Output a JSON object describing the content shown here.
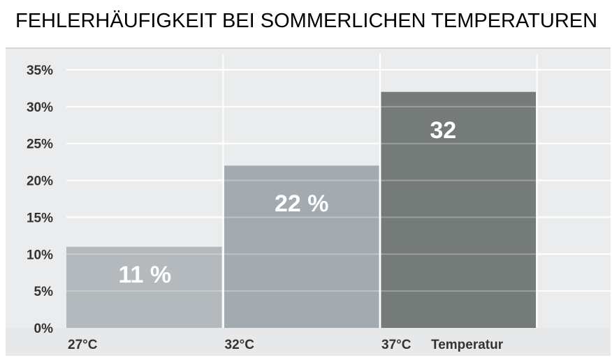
{
  "chart_data": {
    "type": "bar",
    "title": "FEHLERHÄUFIGKEIT BEI SOMMERLICHEN TEMPERATUREN",
    "xlabel": "Temperatur",
    "ylabel": "",
    "categories": [
      "27°C",
      "32°C",
      "37°C"
    ],
    "values": [
      11,
      22,
      32
    ],
    "value_labels": [
      "11 %",
      "22 %",
      "32"
    ],
    "ylim": [
      0,
      35
    ],
    "yticks": [
      0,
      5,
      10,
      15,
      20,
      25,
      30,
      35
    ],
    "ytick_labels": [
      "0%",
      "5%",
      "10%",
      "15%",
      "20%",
      "25%",
      "30%",
      "35%"
    ],
    "grid": true,
    "bar_colors": [
      "#b3b9bd",
      "#a3abb0",
      "#747b79"
    ],
    "background_color": "#eaeced",
    "grid_color": "#ffffff"
  }
}
